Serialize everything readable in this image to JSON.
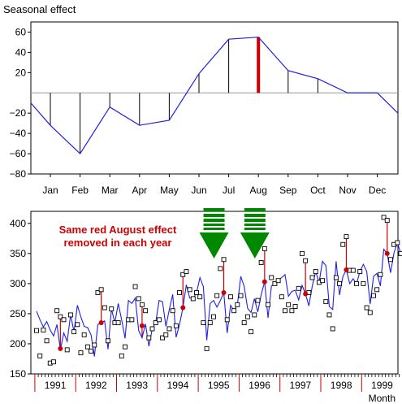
{
  "chart_data": [
    {
      "type": "line",
      "ylabel": "Seasonal effect",
      "xlabel": "",
      "categories": [
        "Jan",
        "Feb",
        "Mar",
        "Apr",
        "May",
        "Jun",
        "Jul",
        "Aug",
        "Sep",
        "Oct",
        "Nov",
        "Dec"
      ],
      "values": [
        -32,
        -60,
        -14,
        -32,
        -27,
        19,
        53,
        55,
        22,
        14,
        0,
        0
      ],
      "x_edge_values": [
        -10,
        -20
      ],
      "highlight_category": "Aug",
      "ylim": [
        -80,
        70
      ],
      "yticks": [
        -80,
        -60,
        -40,
        -20,
        20,
        40,
        60
      ],
      "colors": {
        "line": "#2020e0",
        "stems": "#000000",
        "highlight": "#cc0000",
        "zero_line": "#999999"
      }
    },
    {
      "type": "scatter",
      "xlabel": "Month",
      "ylabel": "",
      "year_labels": [
        "1991",
        "1992",
        "1993",
        "1994",
        "1995",
        "1996",
        "1997",
        "1998",
        "1999"
      ],
      "xlim_years": [
        1990.5,
        2000.0
      ],
      "ylim": [
        150,
        420
      ],
      "yticks": [
        150,
        200,
        250,
        300,
        350,
        400
      ],
      "series": [
        {
          "role": "observed",
          "values": [
            222,
            180,
            223,
            205,
            168,
            170,
            255,
            245,
            240,
            190,
            248,
            220,
            232,
            185,
            215,
            195,
            188,
            198,
            285,
            290,
            260,
            205,
            258,
            235,
            235,
            180,
            195,
            240,
            240,
            295,
            275,
            265,
            255,
            210,
            225,
            235,
            240,
            210,
            215,
            225,
            255,
            230,
            285,
            315,
            320,
            290,
            275,
            285,
            278,
            235,
            192,
            235,
            245,
            280,
            325,
            340,
            240,
            278,
            255,
            265,
            280,
            235,
            245,
            220,
            248,
            272,
            335,
            358,
            265,
            310,
            300,
            305,
            278,
            255,
            265,
            255,
            262,
            292,
            350,
            338,
            285,
            310,
            320,
            302,
            305,
            270,
            248,
            225,
            310,
            300,
            365,
            378,
            322,
            322,
            300,
            320,
            300,
            260,
            252,
            280,
            290,
            315,
            410,
            405,
            340,
            365,
            368,
            350
          ]
        },
        {
          "role": "deseasonalized",
          "values": [
            254,
            240,
            228,
            237,
            223,
            213,
            232,
            190,
            218,
            204,
            248,
            220,
            264,
            245,
            229,
            227,
            215,
            179,
            232,
            235,
            238,
            191,
            258,
            235,
            267,
            240,
            209,
            272,
            267,
            276,
            222,
            210,
            233,
            196,
            225,
            235,
            272,
            270,
            229,
            257,
            282,
            211,
            232,
            260,
            298,
            276,
            275,
            285,
            310,
            295,
            206,
            267,
            272,
            261,
            272,
            285,
            218,
            264,
            255,
            265,
            312,
            295,
            259,
            252,
            275,
            253,
            282,
            303,
            243,
            296,
            300,
            305,
            310,
            315,
            279,
            287,
            289,
            273,
            297,
            283,
            263,
            296,
            320,
            302,
            337,
            330,
            262,
            257,
            337,
            281,
            312,
            323,
            300,
            308,
            300,
            320,
            332,
            320,
            266,
            312,
            317,
            296,
            357,
            350,
            318,
            351,
            368,
            350
          ]
        }
      ],
      "august_markers": [
        192,
        235,
        230,
        260,
        285,
        303,
        283,
        323,
        350
      ],
      "annotation": [
        "Same red August effect",
        "removed in each year"
      ],
      "colors": {
        "points": "#000000",
        "line": "#2020e0",
        "effect": "#cc0000",
        "arrow": "#008800"
      }
    }
  ]
}
